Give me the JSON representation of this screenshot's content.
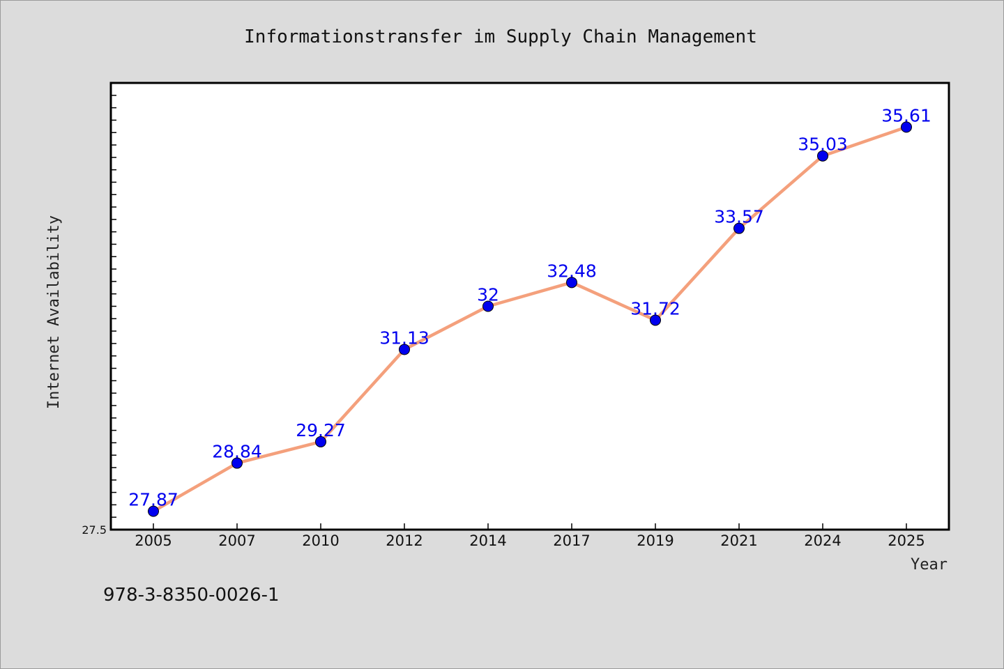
{
  "chart_data": {
    "type": "line",
    "title": "Informationstransfer im Supply Chain Management",
    "xlabel": "Year",
    "ylabel": "Internet Availability",
    "categories": [
      "2005",
      "2007",
      "2010",
      "2012",
      "2014",
      "2017",
      "2019",
      "2021",
      "2024",
      "2025"
    ],
    "series": [
      {
        "values": [
          27.87,
          28.84,
          29.27,
          31.13,
          32,
          32.48,
          31.72,
          33.57,
          35.03,
          35.61
        ],
        "data_labels": [
          "27.87",
          "28.84",
          "29.27",
          "31.13",
          "32",
          "32.48",
          "31.72",
          "33.57",
          "35.03",
          "35.61"
        ]
      }
    ],
    "ylim": [
      27.5,
      36.5
    ],
    "yticks_labeled": [
      "27.5"
    ],
    "grid": false,
    "colors": {
      "line": "#f4a07c",
      "marker": "#0000ee",
      "data_label": "#0000ee",
      "plot_background": "#ffffff",
      "page_background": "#dcdcdc"
    }
  },
  "footer": {
    "isbn": "978-3-8350-0026-1"
  }
}
